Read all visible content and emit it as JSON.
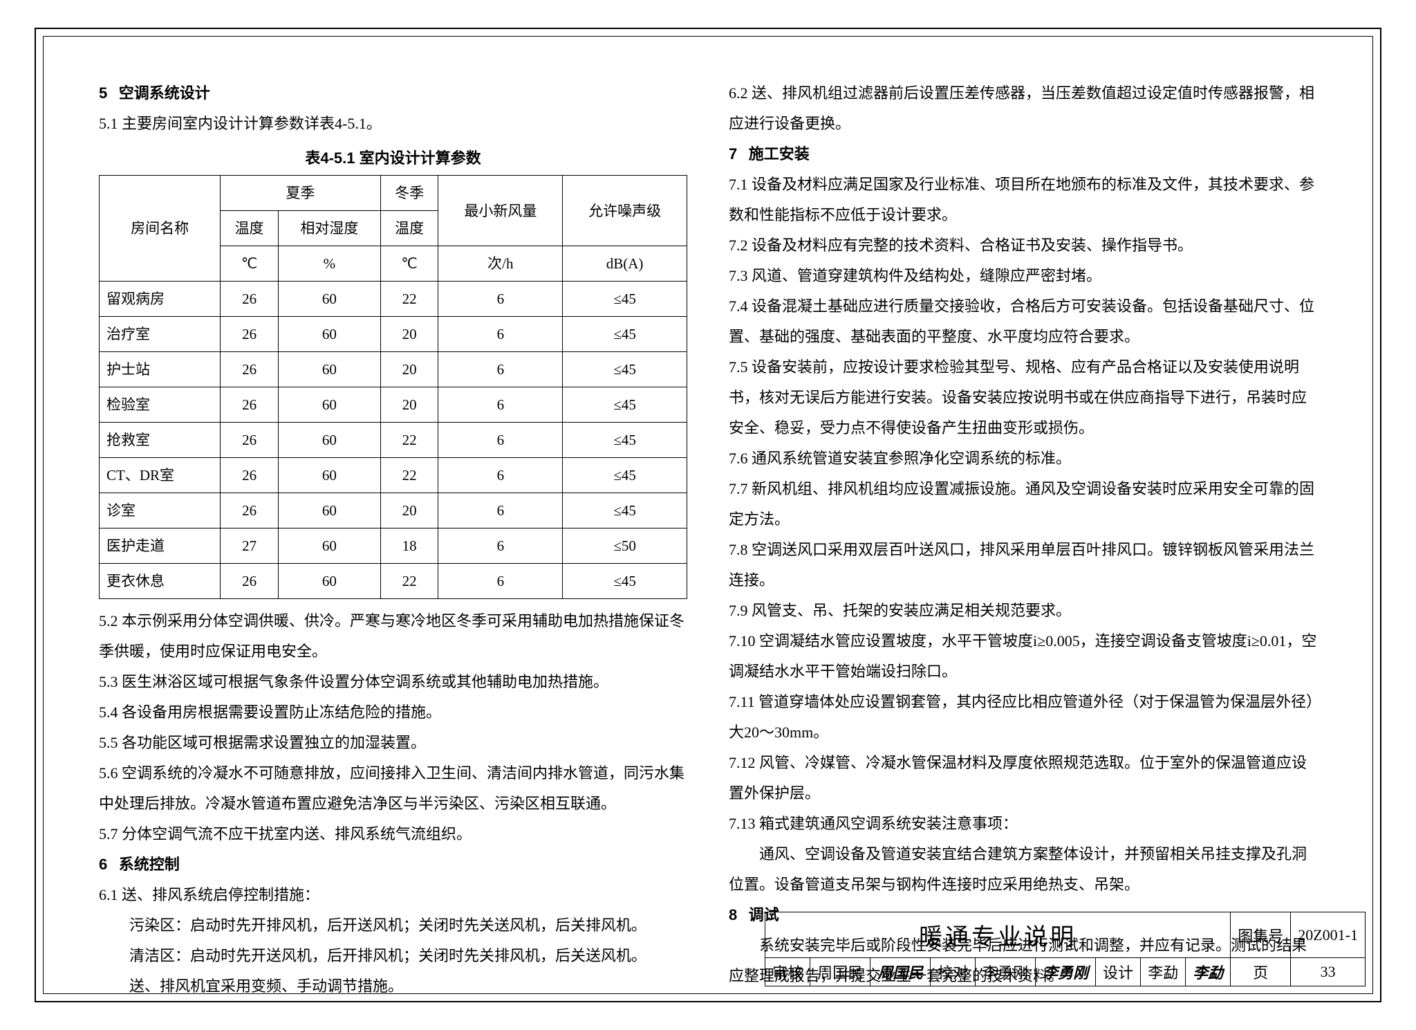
{
  "left": {
    "sec5_num": "5",
    "sec5_title": "空调系统设计",
    "p5_1": "5.1 主要房间室内设计计算参数详表4-5.1。",
    "table_caption": "表4-5.1  室内设计计算参数",
    "table": {
      "head_room": "房间名称",
      "head_summer": "夏季",
      "head_winter": "冬季",
      "head_minfresh": "最小新风量",
      "head_noise": "允许噪声级",
      "sub_temp": "温度",
      "sub_rh": "相对湿度",
      "unit_c": "℃",
      "unit_pct": "%",
      "unit_times": "次/h",
      "unit_db": "dB(A)",
      "rows": [
        {
          "name": "留观病房",
          "st": "26",
          "rh": "60",
          "wt": "22",
          "fa": "6",
          "db": "≤45"
        },
        {
          "name": "治疗室",
          "st": "26",
          "rh": "60",
          "wt": "20",
          "fa": "6",
          "db": "≤45"
        },
        {
          "name": "护士站",
          "st": "26",
          "rh": "60",
          "wt": "20",
          "fa": "6",
          "db": "≤45"
        },
        {
          "name": "检验室",
          "st": "26",
          "rh": "60",
          "wt": "20",
          "fa": "6",
          "db": "≤45"
        },
        {
          "name": "抢救室",
          "st": "26",
          "rh": "60",
          "wt": "22",
          "fa": "6",
          "db": "≤45"
        },
        {
          "name": "CT、DR室",
          "st": "26",
          "rh": "60",
          "wt": "22",
          "fa": "6",
          "db": "≤45"
        },
        {
          "name": "诊室",
          "st": "26",
          "rh": "60",
          "wt": "20",
          "fa": "6",
          "db": "≤45"
        },
        {
          "name": "医护走道",
          "st": "27",
          "rh": "60",
          "wt": "18",
          "fa": "6",
          "db": "≤50"
        },
        {
          "name": "更衣休息",
          "st": "26",
          "rh": "60",
          "wt": "22",
          "fa": "6",
          "db": "≤45"
        }
      ]
    },
    "p5_2": "5.2 本示例采用分体空调供暖、供冷。严寒与寒冷地区冬季可采用辅助电加热措施保证冬季供暖，使用时应保证用电安全。",
    "p5_3": "5.3 医生淋浴区域可根据气象条件设置分体空调系统或其他辅助电加热措施。",
    "p5_4": "5.4 各设备用房根据需要设置防止冻结危险的措施。",
    "p5_5": "5.5 各功能区域可根据需求设置独立的加湿装置。",
    "p5_6": "5.6 空调系统的冷凝水不可随意排放，应间接排入卫生间、清洁间内排水管道，同污水集中处理后排放。冷凝水管道布置应避免洁净区与半污染区、污染区相互联通。",
    "p5_7": "5.7 分体空调气流不应干扰室内送、排风系统气流组织。",
    "sec6_num": "6",
    "sec6_title": "系统控制",
    "p6_1": "6.1 送、排风系统启停控制措施：",
    "p6_1a": "污染区：启动时先开排风机，后开送风机；关闭时先关送风机，后关排风机。",
    "p6_1b": "清洁区：启动时先开送风机，后开排风机；关闭时先关排风机，后关送风机。",
    "p6_1c": "送、排风机宜采用变频、手动调节措施。"
  },
  "right": {
    "p6_2": "6.2 送、排风机组过滤器前后设置压差传感器，当压差数值超过设定值时传感器报警，相应进行设备更换。",
    "sec7_num": "7",
    "sec7_title": "施工安装",
    "p7_1": "7.1 设备及材料应满足国家及行业标准、项目所在地颁布的标准及文件，其技术要求、参数和性能指标不应低于设计要求。",
    "p7_2": "7.2 设备及材料应有完整的技术资料、合格证书及安装、操作指导书。",
    "p7_3": "7.3 风道、管道穿建筑构件及结构处，缝隙应严密封堵。",
    "p7_4": "7.4 设备混凝土基础应进行质量交接验收，合格后方可安装设备。包括设备基础尺寸、位置、基础的强度、基础表面的平整度、水平度均应符合要求。",
    "p7_5": "7.5 设备安装前，应按设计要求检验其型号、规格、应有产品合格证以及安装使用说明书，核对无误后方能进行安装。设备安装应按说明书或在供应商指导下进行，吊装时应安全、稳妥，受力点不得使设备产生扭曲变形或损伤。",
    "p7_6": "7.6 通风系统管道安装宜参照净化空调系统的标准。",
    "p7_7": "7.7 新风机组、排风机组均应设置减振设施。通风及空调设备安装时应采用安全可靠的固定方法。",
    "p7_8": "7.8 空调送风口采用双层百叶送风口，排风采用单层百叶排风口。镀锌钢板风管采用法兰连接。",
    "p7_9": "7.9 风管支、吊、托架的安装应满足相关规范要求。",
    "p7_10": "7.10 空调凝结水管应设置坡度，水平干管坡度i≥0.005，连接空调设备支管坡度i≥0.01，空调凝结水水平干管始端设扫除口。",
    "p7_11": "7.11 管道穿墙体处应设置钢套管，其内径应比相应管道外径（对于保温管为保温层外径）大20～30mm。",
    "p7_12": "7.12 风管、冷媒管、冷凝水管保温材料及厚度依照规范选取。位于室外的保温管道应设置外保护层。",
    "p7_13": "7.13 箱式建筑通风空调系统安装注意事项：",
    "p7_13a": "通风、空调设备及管道安装宜结合建筑方案整体设计，并预留相关吊挂支撑及孔洞位置。设备管道支吊架与钢构件连接时应采用绝热支、吊架。",
    "sec8_num": "8",
    "sec8_title": "调试",
    "p8_body": "系统安装完毕后或阶段性安装完毕后应进行测试和调整，并应有记录。测试的结果应整理成报告，并提交业主一套完整的技术资料。"
  },
  "titleblock": {
    "doc_title": "暖通专业说明",
    "atlas_label": "图集号",
    "atlas_no": "20Z001-1",
    "review_label": "审核",
    "review_name": "周国民",
    "review_sig": "周国民",
    "check_label": "校对",
    "check_name": "李勇刚",
    "check_sig": "李勇刚",
    "design_label": "设计",
    "design_name": "李勐",
    "design_sig": "李勐",
    "page_label": "页",
    "page_no": "33"
  },
  "colors": {
    "text": "#000000",
    "border": "#000000",
    "bg": "#ffffff"
  }
}
